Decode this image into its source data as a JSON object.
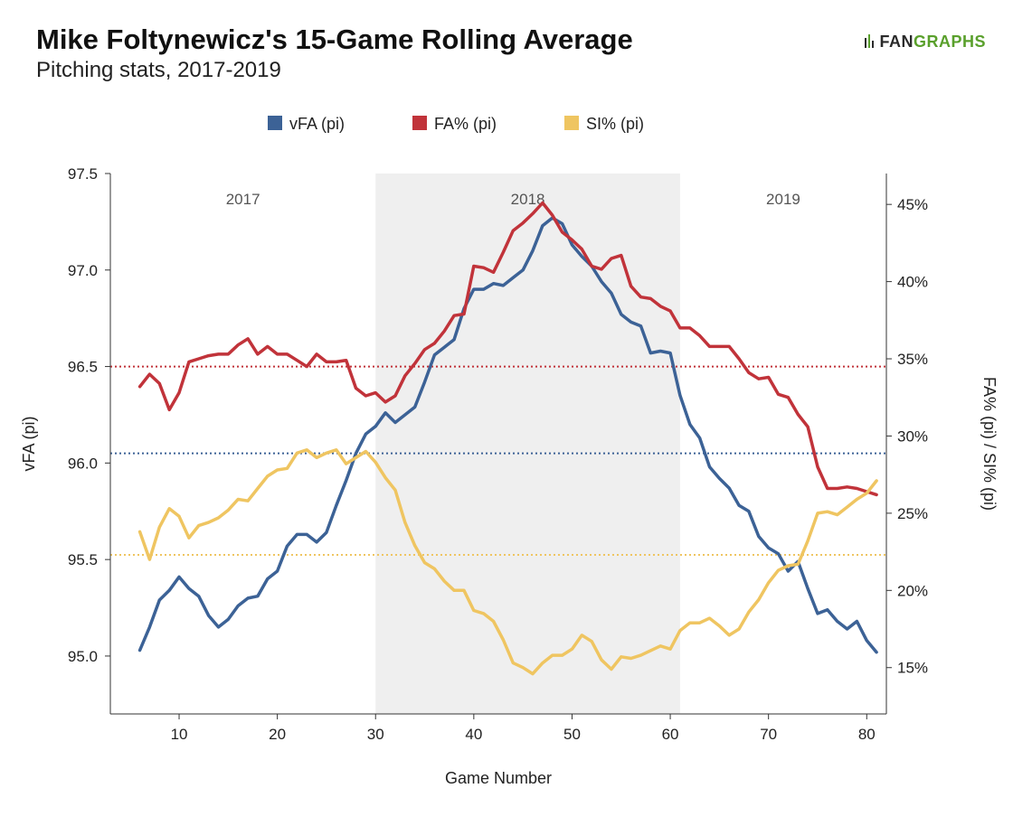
{
  "header": {
    "title": "Mike Foltynewicz's 15-Game Rolling Average",
    "subtitle": "Pitching stats, 2017-2019",
    "logo_fan": "FAN",
    "logo_graphs": "GRAPHS"
  },
  "chart_data": {
    "type": "line",
    "title": "Mike Foltynewicz's 15-Game Rolling Average",
    "subtitle": "Pitching stats, 2017-2019",
    "xlabel": "Game Number",
    "ylabel_left": "vFA (pi)",
    "ylabel_right": "FA% (pi) / SI% (pi)",
    "xlim": [
      3,
      82
    ],
    "ylim_left": [
      94.7,
      97.5
    ],
    "ylim_right": [
      12,
      47
    ],
    "x_ticks": [
      10,
      20,
      30,
      40,
      50,
      60,
      70,
      80
    ],
    "y_left_ticks": [
      "95.0",
      "95.5",
      "96.0",
      "96.5",
      "97.0",
      "97.5"
    ],
    "y_right_ticks": [
      "15%",
      "20%",
      "25%",
      "30%",
      "35%",
      "40%",
      "45%"
    ],
    "legend": [
      "vFA (pi)",
      "FA% (pi)",
      "SI% (pi)"
    ],
    "legend_position": "top-center",
    "grid": false,
    "regions": [
      {
        "label": "2017",
        "x_start": 3,
        "x_end": 30,
        "shaded": false
      },
      {
        "label": "2018",
        "x_start": 30,
        "x_end": 61,
        "shaded": true
      },
      {
        "label": "2019",
        "x_start": 61,
        "x_end": 82,
        "shaded": false
      }
    ],
    "x": [
      6,
      7,
      8,
      9,
      10,
      11,
      12,
      13,
      14,
      15,
      16,
      17,
      18,
      19,
      20,
      21,
      22,
      23,
      24,
      25,
      26,
      27,
      28,
      29,
      30,
      31,
      32,
      33,
      34,
      35,
      36,
      37,
      38,
      39,
      40,
      41,
      42,
      43,
      44,
      45,
      46,
      47,
      48,
      49,
      50,
      51,
      52,
      53,
      54,
      55,
      56,
      57,
      58,
      59,
      60,
      61,
      62,
      63,
      64,
      65,
      66,
      67,
      68,
      69,
      70,
      71,
      72,
      73,
      74,
      75,
      76,
      77,
      78,
      79,
      80,
      81
    ],
    "series": [
      {
        "name": "vFA (pi)",
        "axis": "left",
        "color": "#3c6296",
        "values": [
          95.03,
          95.15,
          95.29,
          95.34,
          95.41,
          95.35,
          95.31,
          95.21,
          95.15,
          95.19,
          95.26,
          95.3,
          95.31,
          95.4,
          95.44,
          95.57,
          95.63,
          95.63,
          95.59,
          95.64,
          95.78,
          95.91,
          96.05,
          96.15,
          96.19,
          96.26,
          96.21,
          96.25,
          96.29,
          96.42,
          96.56,
          96.6,
          96.64,
          96.8,
          96.9,
          96.9,
          96.93,
          96.92,
          96.96,
          97.0,
          97.1,
          97.23,
          97.27,
          97.24,
          97.13,
          97.07,
          97.02,
          96.94,
          96.88,
          96.77,
          96.73,
          96.71,
          96.57,
          96.58,
          96.57,
          96.35,
          96.2,
          96.13,
          95.98,
          95.92,
          95.87,
          95.78,
          95.75,
          95.62,
          95.56,
          95.53,
          95.44,
          95.49,
          95.35,
          95.22,
          95.24,
          95.18,
          95.14,
          95.18,
          95.08,
          95.02
        ]
      },
      {
        "name": "FA% (pi)",
        "axis": "right",
        "color": "#c1333a",
        "values": [
          33.2,
          34.0,
          33.4,
          31.7,
          32.8,
          34.8,
          35.0,
          35.2,
          35.3,
          35.3,
          35.9,
          36.3,
          35.3,
          35.8,
          35.3,
          35.3,
          34.9,
          34.5,
          35.3,
          34.8,
          34.8,
          34.9,
          33.1,
          32.6,
          32.8,
          32.2,
          32.6,
          33.9,
          34.7,
          35.6,
          36.0,
          36.8,
          37.8,
          37.9,
          41.0,
          40.9,
          40.6,
          41.9,
          43.3,
          43.8,
          44.4,
          45.1,
          44.3,
          43.2,
          42.7,
          42.1,
          41.0,
          40.8,
          41.5,
          41.7,
          39.7,
          39.0,
          38.9,
          38.4,
          38.1,
          37.0,
          37.0,
          36.5,
          35.8,
          35.8,
          35.8,
          35.0,
          34.1,
          33.7,
          33.8,
          32.7,
          32.5,
          31.4,
          30.6,
          28.0,
          26.6,
          26.6,
          26.7,
          26.6,
          26.4,
          26.2
        ]
      },
      {
        "name": "SI% (pi)",
        "axis": "right",
        "color": "#efc561",
        "values": [
          23.8,
          22.0,
          24.1,
          25.3,
          24.8,
          23.4,
          24.2,
          24.4,
          24.7,
          25.2,
          25.9,
          25.8,
          26.6,
          27.4,
          27.8,
          27.9,
          28.9,
          29.1,
          28.6,
          28.9,
          29.1,
          28.2,
          28.6,
          29.0,
          28.3,
          27.3,
          26.5,
          24.4,
          22.9,
          21.8,
          21.4,
          20.6,
          20.0,
          20.0,
          18.7,
          18.5,
          18.0,
          16.8,
          15.3,
          15.0,
          14.6,
          15.3,
          15.8,
          15.8,
          16.2,
          17.1,
          16.7,
          15.5,
          14.9,
          15.7,
          15.6,
          15.8,
          16.1,
          16.4,
          16.2,
          17.4,
          17.9,
          17.9,
          18.2,
          17.7,
          17.1,
          17.5,
          18.6,
          19.4,
          20.5,
          21.3,
          21.6,
          21.7,
          23.2,
          25.0,
          25.1,
          24.9,
          25.4,
          25.9,
          26.3,
          27.1
        ]
      }
    ],
    "reference_lines": [
      {
        "series": "vFA (pi)",
        "axis": "left",
        "value": 96.05,
        "color": "#3c6296"
      },
      {
        "series": "FA% (pi)",
        "axis": "right",
        "value": 34.5,
        "color": "#c1333a"
      },
      {
        "series": "SI% (pi)",
        "axis": "right",
        "value": 22.3,
        "color": "#efc561"
      }
    ]
  }
}
